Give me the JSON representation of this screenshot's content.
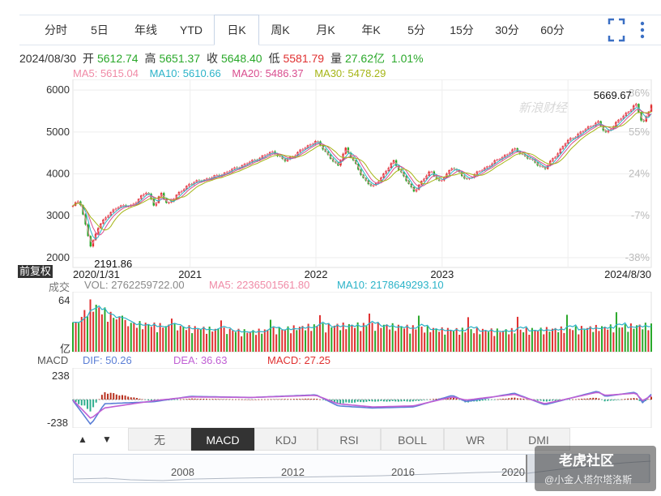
{
  "tabs": [
    "分时",
    "5日",
    "年线",
    "YTD",
    "日K",
    "周K",
    "月K",
    "年K",
    "5分",
    "15分",
    "30分",
    "60分"
  ],
  "active_tab": "日K",
  "info": {
    "date": "2024/08/30",
    "open_label": "开",
    "open": "5612.74",
    "high_label": "高",
    "high": "5651.37",
    "close_label": "收",
    "close": "5648.40",
    "low_label": "低",
    "low": "5581.79",
    "volume_label": "量",
    "volume": "27.62亿",
    "change": "1.01%"
  },
  "ma": {
    "ma5": "MA5: 5615.04",
    "ma10": "MA10: 5610.66",
    "ma20": "MA20: 5486.37",
    "ma30": "MA30: 5478.29"
  },
  "watermark": "新浪财经",
  "adjust_label": "前复权",
  "volume_panel": {
    "title": "成交",
    "vol": "VOL: 2762259722.00",
    "ma5": "MA5: 2236501561.80",
    "ma10": "MA10: 2178649293.10",
    "top_tick": "64",
    "unit": "亿"
  },
  "macd_panel": {
    "title": "MACD",
    "dif": "DIF: 50.26",
    "dea": "DEA: 36.63",
    "macd": "MACD: 27.25",
    "top_tick": "238",
    "bottom_tick": "-238"
  },
  "indicator_buttons": [
    "无",
    "MACD",
    "KDJ",
    "RSI",
    "BOLL",
    "WR",
    "DMI"
  ],
  "active_indicator": "MACD",
  "arrows": {
    "up": "▲",
    "down": "▼"
  },
  "navigator": {
    "years": [
      "2008",
      "2012",
      "2016",
      "2020"
    ]
  },
  "overlay_watermark": {
    "brand": "老虎社区",
    "author": "@小金人塔尔塔洛斯"
  },
  "colors": {
    "up": "#e03030",
    "down": "#2aa82a",
    "ma5": "#f08aa6",
    "ma10": "#2bb3c8",
    "ma20": "#d94e8f",
    "ma30": "#a5b516",
    "dif": "#5b7fd6",
    "dea": "#c05fd4"
  },
  "chart_data": {
    "type": "candlestick",
    "y_ticks_left": [
      "6000",
      "5000",
      "4000",
      "3000",
      "2000"
    ],
    "y_ticks_right": [
      "86%",
      "55%",
      "24%",
      "-7%",
      "-38%"
    ],
    "x_ticks": [
      "2020/1/31",
      "2021",
      "2022",
      "2023",
      "2024/8/30"
    ],
    "ylim": [
      1900,
      6100
    ],
    "annotations": [
      {
        "label": "2191.86",
        "x": "2020/3/23",
        "y": 2191.86
      },
      {
        "label": "5669.67",
        "x": "2024/7/16",
        "y": 5669.67
      }
    ],
    "series": [
      {
        "name": "收",
        "x": [
          "2020/1/31",
          "2020/2/19",
          "2020/3/23",
          "2020/4/15",
          "2020/6/8",
          "2020/7/15",
          "2020/9/2",
          "2020/9/23",
          "2020/10/12",
          "2020/10/30",
          "2020/12/31",
          "2021/3/31",
          "2021/6/30",
          "2021/9/2",
          "2021/10/4",
          "2022/1/3",
          "2022/3/8",
          "2022/3/29",
          "2022/5/20",
          "2022/6/16",
          "2022/8/16",
          "2022/10/12",
          "2022/12/1",
          "2022/12/28",
          "2023/2/2",
          "2023/3/13",
          "2023/7/31",
          "2023/10/27",
          "2023/12/29",
          "2024/3/28",
          "2024/4/19",
          "2024/7/16",
          "2024/8/5",
          "2024/8/30"
        ],
        "values": [
          3225,
          3386,
          2237,
          2783,
          3232,
          3226,
          3580,
          3237,
          3534,
          3270,
          3756,
          3973,
          4297,
          4537,
          4300,
          4796,
          4170,
          4631,
          3901,
          3667,
          4305,
          3577,
          4080,
          3783,
          4179,
          3855,
          4588,
          4117,
          4770,
          5254,
          4967,
          5667,
          5186,
          5648
        ]
      },
      {
        "name": "VOL",
        "unit": "亿",
        "ylim": [
          0,
          64
        ],
        "x": [
          "2020/1/31",
          "2020/3/23",
          "2020/6/30",
          "2021/1/4",
          "2021/6/30",
          "2022/1/3",
          "2022/6/30",
          "2023/1/3",
          "2023/6/30",
          "2024/1/2",
          "2024/8/30"
        ],
        "values": [
          24,
          50,
          30,
          25,
          21,
          27,
          28,
          23,
          22,
          24,
          27.6
        ]
      },
      {
        "name": "DIF",
        "ylim": [
          -238,
          238
        ],
        "x": [
          "2020/1/31",
          "2020/3/23",
          "2020/5/1",
          "2020/9/23",
          "2021/1/4",
          "2021/6/30",
          "2022/1/3",
          "2022/3/8",
          "2022/6/16",
          "2022/10/12",
          "2023/2/2",
          "2023/3/13",
          "2023/7/31",
          "2023/10/27",
          "2024/3/28",
          "2024/4/19",
          "2024/7/16",
          "2024/8/5",
          "2024/8/30"
        ],
        "values": [
          -10,
          -238,
          -40,
          -20,
          30,
          20,
          45,
          -60,
          -80,
          -70,
          40,
          -20,
          60,
          -50,
          80,
          30,
          70,
          -30,
          50.26
        ]
      },
      {
        "name": "DEA",
        "x": [
          "2020/1/31",
          "2020/3/23",
          "2020/5/1",
          "2020/9/23",
          "2021/1/4",
          "2021/6/30",
          "2022/1/3",
          "2022/3/8",
          "2022/6/16",
          "2022/10/12",
          "2023/2/2",
          "2023/3/13",
          "2023/7/31",
          "2023/10/27",
          "2024/3/28",
          "2024/4/19",
          "2024/7/16",
          "2024/8/5",
          "2024/8/30"
        ],
        "values": [
          -5,
          -180,
          -80,
          -10,
          25,
          20,
          40,
          -40,
          -70,
          -60,
          25,
          -5,
          50,
          -40,
          70,
          40,
          60,
          -10,
          36.63
        ]
      },
      {
        "name": "MACD",
        "x": [
          "2020/1/31",
          "2020/3/23",
          "2020/5/1",
          "2020/9/23",
          "2021/1/4",
          "2021/6/30",
          "2022/1/3",
          "2022/3/8",
          "2022/6/16",
          "2022/10/12",
          "2023/2/2",
          "2023/3/13",
          "2023/7/31",
          "2023/10/27",
          "2024/3/28",
          "2024/4/19",
          "2024/7/16",
          "2024/8/5",
          "2024/8/30"
        ],
        "values": [
          -10,
          -116,
          80,
          -20,
          10,
          0,
          10,
          -40,
          -20,
          -20,
          30,
          -30,
          20,
          -20,
          20,
          -20,
          20,
          -40,
          27.25
        ]
      }
    ]
  }
}
